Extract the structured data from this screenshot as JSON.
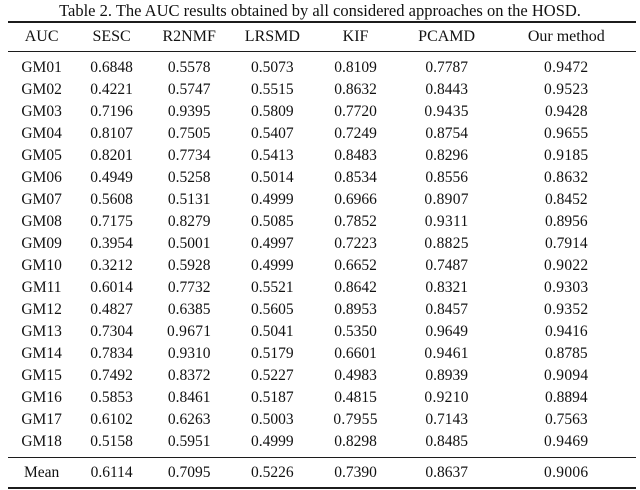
{
  "caption": "Table 2. The AUC results obtained by all considered approaches on the HOSD.",
  "table": {
    "headers": [
      "AUC",
      "SESC",
      "R2NMF",
      "LRSMD",
      "KIF",
      "PCAMD",
      "Our method"
    ],
    "rows": [
      {
        "label": "GM01",
        "values": [
          "0.6848",
          "0.5578",
          "0.5073",
          "0.8109",
          "0.7787",
          "0.9472"
        ],
        "bold_col": 5
      },
      {
        "label": "GM02",
        "values": [
          "0.4221",
          "0.5747",
          "0.5515",
          "0.8632",
          "0.8443",
          "0.9523"
        ],
        "bold_col": 5
      },
      {
        "label": "GM03",
        "values": [
          "0.7196",
          "0.9395",
          "0.5809",
          "0.7720",
          "0.9435",
          "0.9428"
        ],
        "bold_col": 4
      },
      {
        "label": "GM04",
        "values": [
          "0.8107",
          "0.7505",
          "0.5407",
          "0.7249",
          "0.8754",
          "0.9655"
        ],
        "bold_col": 5
      },
      {
        "label": "GM05",
        "values": [
          "0.8201",
          "0.7734",
          "0.5413",
          "0.8483",
          "0.8296",
          "0.9185"
        ],
        "bold_col": 5
      },
      {
        "label": "GM06",
        "values": [
          "0.4949",
          "0.5258",
          "0.5014",
          "0.8534",
          "0.8556",
          "0.8632"
        ],
        "bold_col": 5
      },
      {
        "label": "GM07",
        "values": [
          "0.5608",
          "0.5131",
          "0.4999",
          "0.6966",
          "0.8907",
          "0.8452"
        ],
        "bold_col": 4
      },
      {
        "label": "GM08",
        "values": [
          "0.7175",
          "0.8279",
          "0.5085",
          "0.7852",
          "0.9311",
          "0.8956"
        ],
        "bold_col": 4
      },
      {
        "label": "GM09",
        "values": [
          "0.3954",
          "0.5001",
          "0.4997",
          "0.7223",
          "0.8825",
          "0.7914"
        ],
        "bold_col": 4
      },
      {
        "label": "GM10",
        "values": [
          "0.3212",
          "0.5928",
          "0.4999",
          "0.6652",
          "0.7487",
          "0.9022"
        ],
        "bold_col": 5
      },
      {
        "label": "GM11",
        "values": [
          "0.6014",
          "0.7732",
          "0.5521",
          "0.8642",
          "0.8321",
          "0.9303"
        ],
        "bold_col": 5
      },
      {
        "label": "GM12",
        "values": [
          "0.4827",
          "0.6385",
          "0.5605",
          "0.8953",
          "0.8457",
          "0.9352"
        ],
        "bold_col": 5
      },
      {
        "label": "GM13",
        "values": [
          "0.7304",
          "0.9671",
          "0.5041",
          "0.5350",
          "0.9649",
          "0.9416"
        ],
        "bold_col": 1
      },
      {
        "label": "GM14",
        "values": [
          "0.7834",
          "0.9310",
          "0.5179",
          "0.6601",
          "0.9461",
          "0.8785"
        ],
        "bold_col": 4
      },
      {
        "label": "GM15",
        "values": [
          "0.7492",
          "0.8372",
          "0.5227",
          "0.4983",
          "0.8939",
          "0.9094"
        ],
        "bold_col": 5
      },
      {
        "label": "GM16",
        "values": [
          "0.5853",
          "0.8461",
          "0.5187",
          "0.4815",
          "0.9210",
          "0.8894"
        ],
        "bold_col": 4
      },
      {
        "label": "GM17",
        "values": [
          "0.6102",
          "0.6263",
          "0.5003",
          "0.7955",
          "0.7143",
          "0.7563"
        ],
        "bold_col": 3
      },
      {
        "label": "GM18",
        "values": [
          "0.5158",
          "0.5951",
          "0.4999",
          "0.8298",
          "0.8485",
          "0.9469"
        ],
        "bold_col": 5
      }
    ],
    "mean": {
      "label": "Mean",
      "values": [
        "0.6114",
        "0.7095",
        "0.5226",
        "0.7390",
        "0.8637",
        "0.9006"
      ],
      "bold_col": 5
    }
  },
  "chart_data": {
    "type": "table",
    "title": "Table 2. The AUC results obtained by all considered approaches on the HOSD.",
    "categories": [
      "GM01",
      "GM02",
      "GM03",
      "GM04",
      "GM05",
      "GM06",
      "GM07",
      "GM08",
      "GM09",
      "GM10",
      "GM11",
      "GM12",
      "GM13",
      "GM14",
      "GM15",
      "GM16",
      "GM17",
      "GM18",
      "Mean"
    ],
    "series": [
      {
        "name": "SESC",
        "values": [
          0.6848,
          0.4221,
          0.7196,
          0.8107,
          0.8201,
          0.4949,
          0.5608,
          0.7175,
          0.3954,
          0.3212,
          0.6014,
          0.4827,
          0.7304,
          0.7834,
          0.7492,
          0.5853,
          0.6102,
          0.5158,
          0.6114
        ]
      },
      {
        "name": "R2NMF",
        "values": [
          0.5578,
          0.5747,
          0.9395,
          0.7505,
          0.7734,
          0.5258,
          0.5131,
          0.8279,
          0.5001,
          0.5928,
          0.7732,
          0.6385,
          0.9671,
          0.931,
          0.8372,
          0.8461,
          0.6263,
          0.5951,
          0.7095
        ]
      },
      {
        "name": "LRSMD",
        "values": [
          0.5073,
          0.5515,
          0.5809,
          0.5407,
          0.5413,
          0.5014,
          0.4999,
          0.5085,
          0.4997,
          0.4999,
          0.5521,
          0.5605,
          0.5041,
          0.5179,
          0.5227,
          0.5187,
          0.5003,
          0.4999,
          0.5226
        ]
      },
      {
        "name": "KIF",
        "values": [
          0.8109,
          0.8632,
          0.772,
          0.7249,
          0.8483,
          0.8534,
          0.6966,
          0.7852,
          0.7223,
          0.6652,
          0.8642,
          0.8953,
          0.535,
          0.6601,
          0.4983,
          0.4815,
          0.7955,
          0.8298,
          0.739
        ]
      },
      {
        "name": "PCAMD",
        "values": [
          0.7787,
          0.8443,
          0.9435,
          0.8754,
          0.8296,
          0.8556,
          0.8907,
          0.9311,
          0.8825,
          0.7487,
          0.8321,
          0.8457,
          0.9649,
          0.9461,
          0.8939,
          0.921,
          0.7143,
          0.8485,
          0.8637
        ]
      },
      {
        "name": "Our method",
        "values": [
          0.9472,
          0.9523,
          0.9428,
          0.9655,
          0.9185,
          0.8632,
          0.8452,
          0.8956,
          0.7914,
          0.9022,
          0.9303,
          0.9352,
          0.9416,
          0.8785,
          0.9094,
          0.8894,
          0.7563,
          0.9469,
          0.9006
        ]
      }
    ]
  }
}
